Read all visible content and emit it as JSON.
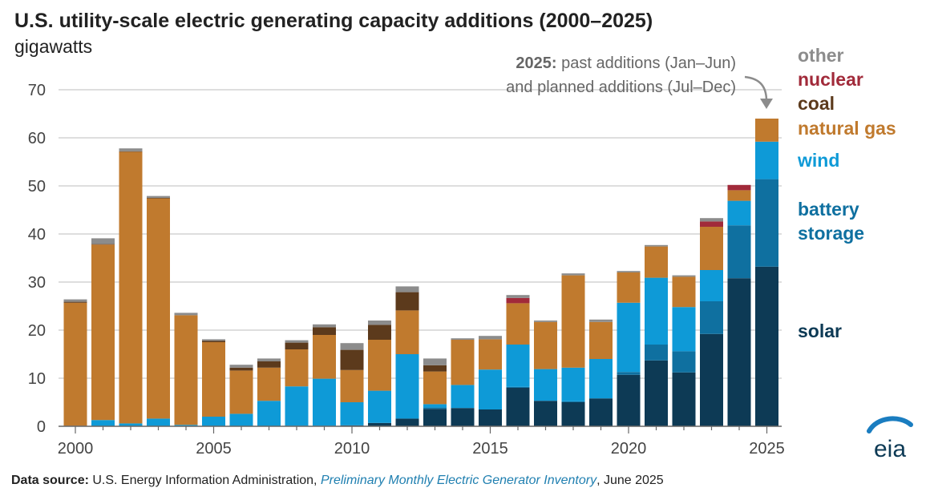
{
  "title": "U.S. utility-scale electric generating capacity additions (2000–2025)",
  "units": "gigawatts",
  "annotation": {
    "bold": "2025:",
    "line1_rest": " past additions (Jan–Jun)",
    "line2": "and planned additions (Jul–Dec)"
  },
  "legend_labels": {
    "other": "other",
    "nuclear": "nuclear",
    "coal": "coal",
    "natural_gas": "natural gas",
    "wind": "wind",
    "battery_line1": "battery",
    "battery_line2": "storage",
    "solar": "solar"
  },
  "source": {
    "label": "Data source:",
    "text1": " U.S. Energy Information Administration, ",
    "publication": "Preliminary Monthly Electric Generator Inventory",
    "text2": ", June 2025"
  },
  "logo_text": "eia",
  "chart_data": {
    "type": "bar",
    "stacked": true,
    "categories": [
      2000,
      2001,
      2002,
      2003,
      2004,
      2005,
      2006,
      2007,
      2008,
      2009,
      2010,
      2011,
      2012,
      2013,
      2014,
      2015,
      2016,
      2017,
      2018,
      2019,
      2020,
      2021,
      2022,
      2023,
      2024,
      2025
    ],
    "xticks": [
      "2000",
      "2005",
      "2010",
      "2015",
      "2020",
      "2025"
    ],
    "ylim": [
      0,
      75
    ],
    "yticks": [
      0,
      10,
      20,
      30,
      40,
      50,
      60,
      70
    ],
    "grid": true,
    "legend_placement": "right",
    "series": [
      {
        "key": "solar",
        "name": "solar",
        "color": "#0d3a55",
        "values": [
          0,
          0,
          0,
          0,
          0,
          0,
          0,
          0,
          0.1,
          0.1,
          0.2,
          0.7,
          1.6,
          3.6,
          3.8,
          3.5,
          8.0,
          5.3,
          5.0,
          5.8,
          10.7,
          13.7,
          11.2,
          19.2,
          30.8,
          33.2
        ]
      },
      {
        "key": "battery",
        "name": "battery storage",
        "color": "#0f70a0",
        "values": [
          0,
          0,
          0,
          0,
          0,
          0,
          0,
          0,
          0,
          0,
          0,
          0,
          0,
          0.3,
          0,
          0,
          0.2,
          0,
          0.2,
          0,
          0.6,
          3.3,
          4.4,
          6.8,
          11.0,
          18.2
        ]
      },
      {
        "key": "wind",
        "name": "wind",
        "color": "#0e9ad7",
        "values": [
          0.1,
          1.3,
          0.6,
          1.6,
          0.3,
          2.0,
          2.6,
          5.3,
          8.2,
          9.8,
          4.8,
          6.7,
          13.4,
          0.7,
          4.8,
          8.3,
          8.8,
          6.6,
          7.0,
          8.2,
          14.4,
          13.9,
          9.2,
          6.5,
          5.1,
          7.8
        ]
      },
      {
        "key": "natural_gas",
        "name": "natural gas",
        "color": "#c07a2e",
        "values": [
          25.6,
          36.5,
          56.5,
          45.8,
          22.8,
          15.5,
          9.0,
          6.9,
          7.7,
          9.1,
          6.7,
          10.6,
          9.1,
          6.8,
          9.4,
          6.3,
          8.6,
          9.8,
          19.2,
          7.7,
          6.3,
          6.5,
          6.3,
          9.0,
          2.2,
          4.8
        ]
      },
      {
        "key": "coal",
        "name": "coal",
        "color": "#5c3a1c",
        "values": [
          0.2,
          0.1,
          0.1,
          0.1,
          0,
          0.3,
          0.6,
          1.3,
          1.4,
          1.6,
          4.2,
          3.1,
          3.8,
          1.3,
          0,
          0,
          0,
          0,
          0,
          0,
          0,
          0,
          0,
          0,
          0,
          0
        ]
      },
      {
        "key": "nuclear",
        "name": "nuclear",
        "color": "#a12a3a",
        "values": [
          0,
          0,
          0,
          0,
          0,
          0,
          0,
          0,
          0,
          0,
          0,
          0,
          0,
          0,
          0,
          0,
          1.1,
          0,
          0,
          0,
          0,
          0,
          0,
          1.1,
          1.1,
          0
        ]
      },
      {
        "key": "other",
        "name": "other",
        "color": "#8c8c8c",
        "values": [
          0.5,
          1.2,
          0.6,
          0.4,
          0.5,
          0.3,
          0.6,
          0.6,
          0.5,
          0.6,
          1.4,
          0.9,
          1.2,
          1.4,
          0.3,
          0.7,
          0.6,
          0.3,
          0.4,
          0.5,
          0.3,
          0.3,
          0.3,
          0.7,
          0,
          0
        ]
      }
    ]
  }
}
